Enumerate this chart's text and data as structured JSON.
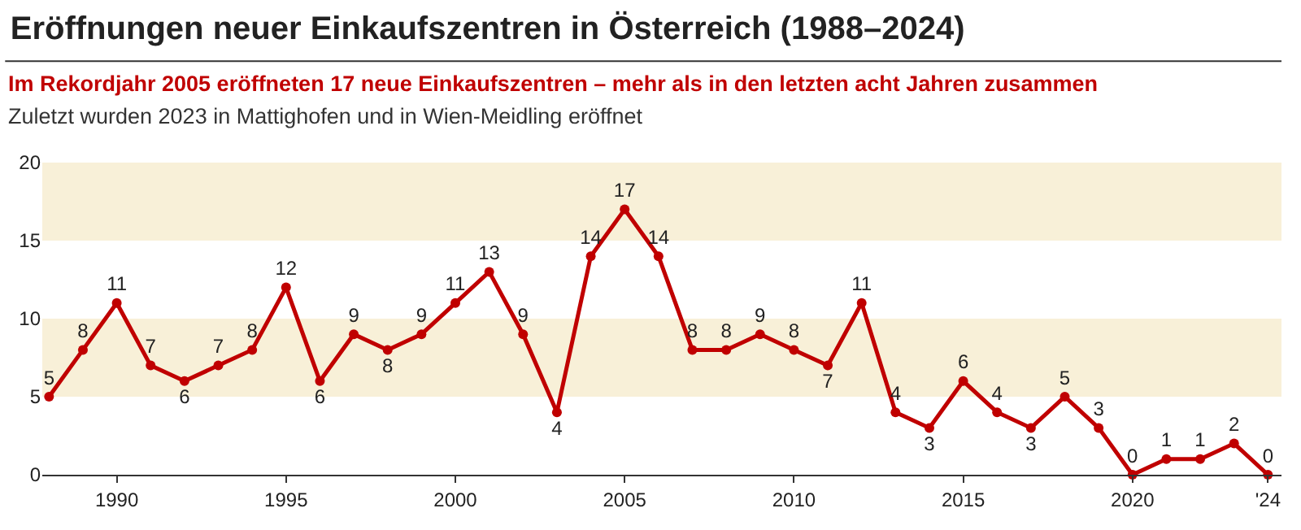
{
  "chart_data": {
    "type": "line",
    "title": "Eröffnungen neuer Einkaufszentren in Österreich (1988–2024)",
    "subtitle": "Im Rekordjahr 2005 eröffneten 17 neue Einkaufszentren – mehr als in den letzten acht Jahren zusammen",
    "annotations": [
      "Zuletzt wurden 2023 in Mattighofen und in Wien-Meidling eröffnet"
    ],
    "x": [
      1988,
      1989,
      1990,
      1991,
      1992,
      1993,
      1994,
      1995,
      1996,
      1997,
      1998,
      1999,
      2000,
      2001,
      2002,
      2003,
      2004,
      2005,
      2006,
      2007,
      2008,
      2009,
      2010,
      2011,
      2012,
      2013,
      2014,
      2015,
      2016,
      2017,
      2018,
      2019,
      2020,
      2021,
      2022,
      2023,
      2024
    ],
    "series": [
      {
        "color": "#c00000",
        "values": [
          5,
          8,
          11,
          7,
          6,
          7,
          8,
          12,
          6,
          9,
          8,
          9,
          11,
          13,
          9,
          4,
          14,
          17,
          14,
          8,
          8,
          9,
          8,
          7,
          11,
          4,
          3,
          6,
          4,
          3,
          5,
          3,
          0,
          1,
          1,
          2,
          0
        ]
      }
    ],
    "xlim": [
      1987.8,
      2024.4
    ],
    "xticks": [
      1990,
      1995,
      2000,
      2005,
      2010,
      2015,
      2020,
      {
        "value": 2024,
        "label": "'24"
      }
    ],
    "ylim": [
      0,
      20
    ],
    "yticks": [
      0,
      5,
      10,
      15,
      20
    ],
    "bands": [
      {
        "axis": "y",
        "from": 5,
        "to": 10,
        "color": "#f8f0d8"
      },
      {
        "axis": "y",
        "from": 15,
        "to": 20,
        "color": "#f8f0d8"
      }
    ],
    "data_labels": true,
    "marker": "circle",
    "line_style": "solid",
    "grid": false,
    "legend": false
  }
}
